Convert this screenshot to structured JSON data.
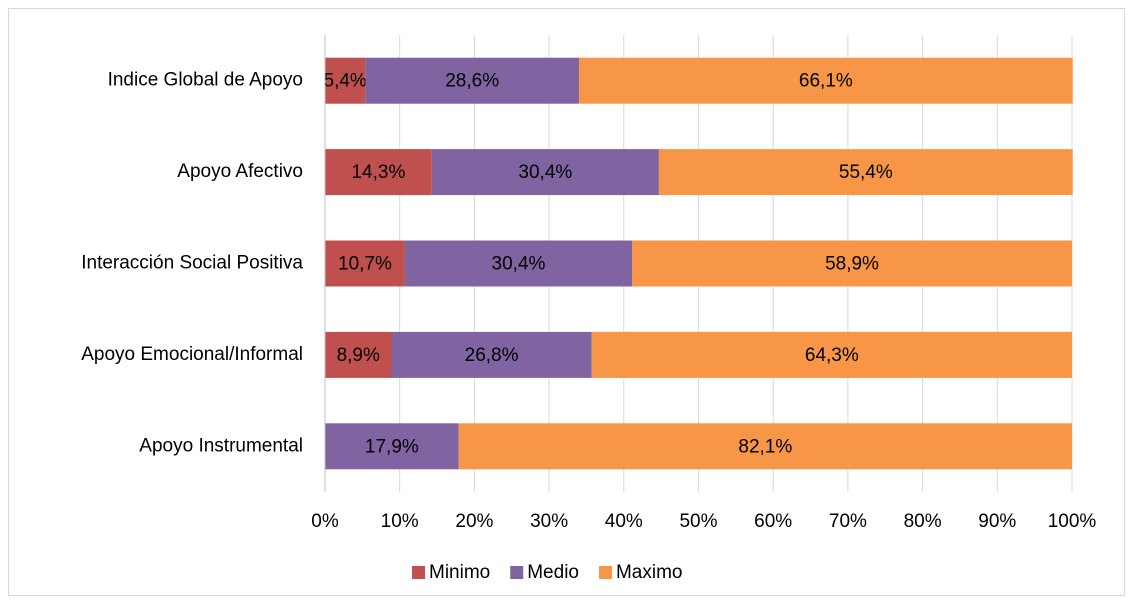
{
  "chart_data": {
    "type": "stacked-barh",
    "categories": [
      "Indice Global de Apoyo",
      "Apoyo Afectivo",
      "Interacción Social Positiva",
      "Apoyo Emocional/Informal",
      "Apoyo Instrumental"
    ],
    "series": [
      {
        "name": "Minimo",
        "color": "#c0504d",
        "values": [
          5.4,
          14.3,
          10.7,
          8.9,
          null
        ],
        "value_labels": [
          "5,4%",
          "14,3%",
          "10,7%",
          "8,9%",
          null
        ]
      },
      {
        "name": "Medio",
        "color": "#8064a2",
        "values": [
          28.6,
          30.4,
          30.4,
          26.8,
          17.9
        ],
        "value_labels": [
          "28,6%",
          "30,4%",
          "30,4%",
          "26,8%",
          "17,9%"
        ]
      },
      {
        "name": "Maximo",
        "color": "#f79646",
        "values": [
          66.1,
          55.4,
          58.9,
          64.3,
          82.1
        ],
        "value_labels": [
          "66,1%",
          "55,4%",
          "58,9%",
          "64,3%",
          "82,1%"
        ]
      }
    ],
    "xlim": [
      0,
      100
    ],
    "xticks": [
      {
        "value": 0,
        "label": "0%"
      },
      {
        "value": 10,
        "label": "10%"
      },
      {
        "value": 20,
        "label": "20%"
      },
      {
        "value": 30,
        "label": "30%"
      },
      {
        "value": 40,
        "label": "40%"
      },
      {
        "value": 50,
        "label": "50%"
      },
      {
        "value": 60,
        "label": "60%"
      },
      {
        "value": 70,
        "label": "70%"
      },
      {
        "value": 80,
        "label": "80%"
      },
      {
        "value": 90,
        "label": "90%"
      },
      {
        "value": 100,
        "label": "100%"
      }
    ],
    "grid": true,
    "legend": "bottom"
  }
}
